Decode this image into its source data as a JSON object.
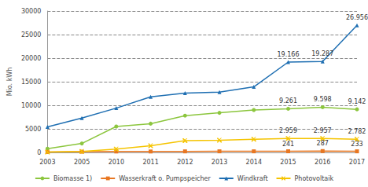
{
  "chart_data": {
    "type": "line",
    "y_label": "Mio. kWh",
    "categories": [
      "2003",
      "2005",
      "2010",
      "2011",
      "2012",
      "2013",
      "2014",
      "2015",
      "2016",
      "2017"
    ],
    "series": [
      {
        "name": "Biomasse 1)",
        "color": "#8cc63e",
        "marker": "circle",
        "values": [
          800,
          1900,
          5500,
          6100,
          7800,
          8400,
          9000,
          9261,
          9598,
          9142
        ],
        "value_labels": [
          null,
          null,
          null,
          null,
          null,
          null,
          null,
          "9.261",
          "9.598",
          "9.142"
        ]
      },
      {
        "name": "Wasserkraft o. Pumpspeicher",
        "color": "#e87722",
        "marker": "square",
        "values": [
          100,
          150,
          200,
          200,
          220,
          230,
          230,
          241,
          287,
          233
        ],
        "value_labels": [
          null,
          null,
          null,
          null,
          null,
          null,
          null,
          "241",
          "287",
          "233"
        ]
      },
      {
        "name": "Windkraft",
        "color": "#1f6fb2",
        "marker": "triangle",
        "values": [
          5400,
          7300,
          9400,
          11800,
          12600,
          12800,
          13900,
          19166,
          19287,
          26956
        ],
        "value_labels": [
          null,
          null,
          null,
          null,
          null,
          null,
          null,
          "19.166",
          "19.287",
          "26.956"
        ]
      },
      {
        "name": "Photovoltaik",
        "color": "#f5c400",
        "marker": "x",
        "values": [
          100,
          200,
          700,
          1400,
          2500,
          2600,
          2800,
          2959,
          2957,
          2782
        ],
        "value_labels": [
          null,
          null,
          null,
          null,
          null,
          null,
          null,
          "2.959",
          "2.957",
          "2.782"
        ]
      }
    ],
    "ylim": [
      0,
      30000
    ],
    "yticks": [
      0,
      5000,
      10000,
      15000,
      20000,
      25000,
      30000
    ],
    "grid": true,
    "legend": "bottom"
  }
}
